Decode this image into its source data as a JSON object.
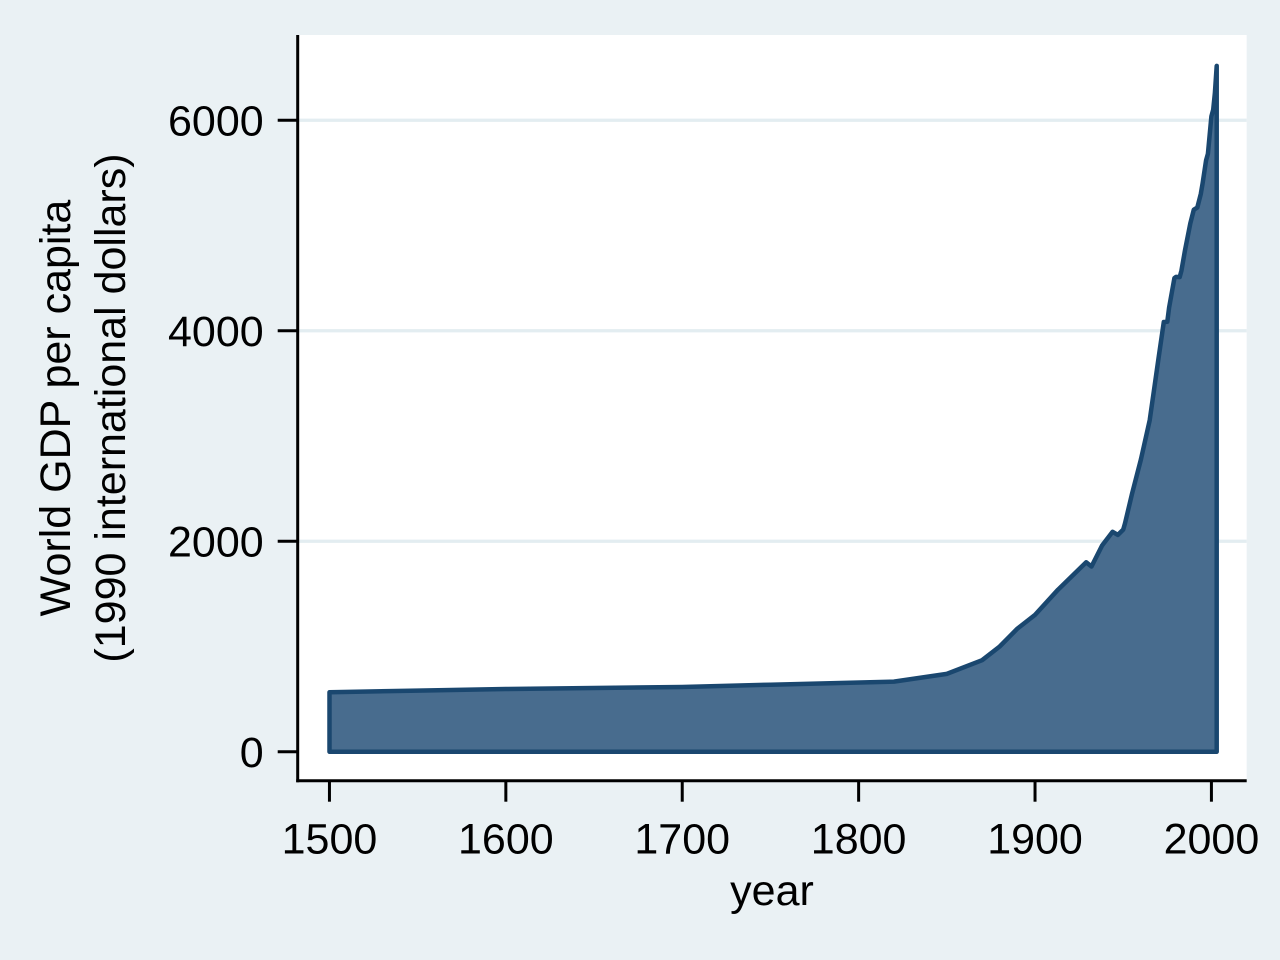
{
  "chart_data": {
    "type": "area",
    "title": "",
    "xlabel": "year",
    "ylabel": "World GDP per capita (1990 international dollars)",
    "ylabel_lines": [
      "World GDP per capita",
      "(1990 international dollars)"
    ],
    "series": [
      {
        "name": "World GDP per capita (1990 international dollars)",
        "x": [
          1500,
          1550,
          1600,
          1650,
          1700,
          1750,
          1820,
          1850,
          1870,
          1880,
          1890,
          1900,
          1913,
          1929,
          1932,
          1938,
          1944,
          1947,
          1950,
          1951,
          1955,
          1960,
          1965,
          1970,
          1973,
          1975,
          1976,
          1979,
          1980,
          1982,
          1983,
          1985,
          1988,
          1990,
          1992,
          1994,
          1995,
          1997,
          1998,
          2000,
          2001,
          2002,
          2003
        ],
        "values": [
          566,
          581,
          596,
          606,
          615,
          637,
          667,
          740,
          870,
          1000,
          1170,
          1300,
          1540,
          1800,
          1760,
          1960,
          2090,
          2060,
          2111,
          2170,
          2450,
          2777,
          3150,
          3736,
          4083,
          4086,
          4220,
          4500,
          4512,
          4510,
          4570,
          4764,
          5020,
          5150,
          5170,
          5300,
          5400,
          5620,
          5680,
          6038,
          6100,
          6260,
          6516
        ],
        "baseline": 0
      }
    ],
    "xlim": [
      1482,
      2020
    ],
    "ylim": [
      -275,
      6810
    ],
    "x_ticks": [
      1500,
      1600,
      1700,
      1800,
      1900,
      2000
    ],
    "x_tick_labels": [
      "1500",
      "1600",
      "1700",
      "1800",
      "1900",
      "2000"
    ],
    "y_ticks": [
      0,
      2000,
      4000,
      6000
    ],
    "y_tick_labels": [
      "0",
      "2000",
      "4000",
      "6000"
    ],
    "y_gridlines": [
      2000,
      4000,
      6000
    ],
    "grid": "horizontal-only",
    "legend": "none",
    "colors": {
      "page_background": "#eaf1f4",
      "plot_background": "#ffffff",
      "gridline": "#e3edf1",
      "area_fill": "#486c8e",
      "area_stroke": "#1a476f",
      "axis": "#000000",
      "text": "#000000"
    }
  }
}
